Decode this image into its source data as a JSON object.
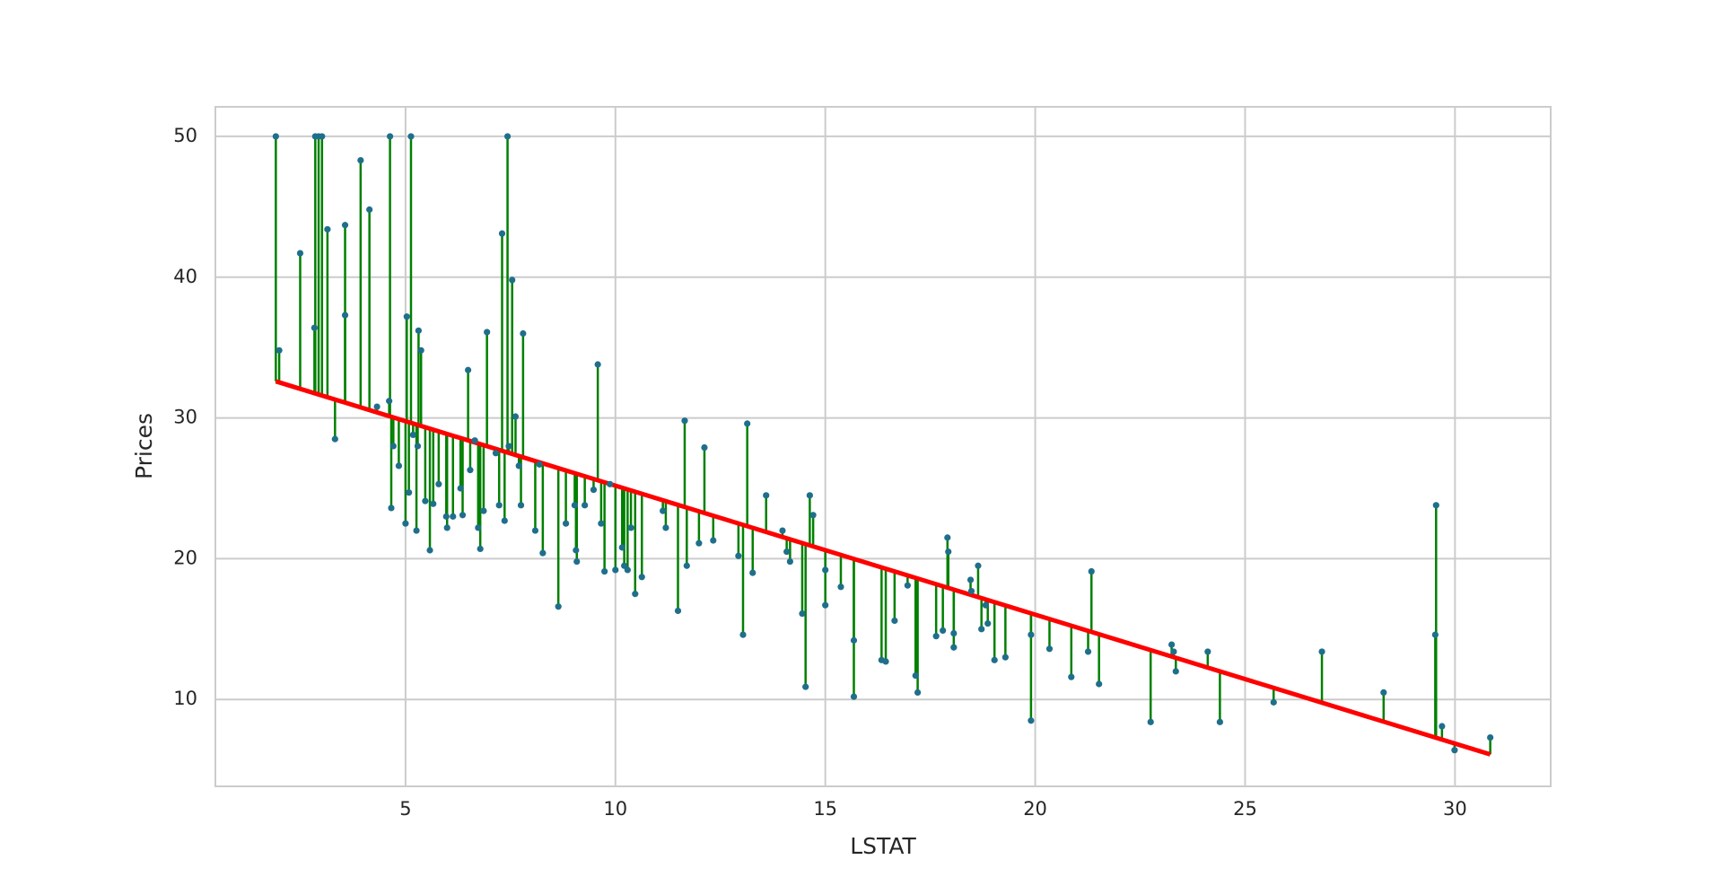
{
  "chart_data": {
    "type": "scatter",
    "x_label": "LSTAT",
    "y_label": "Prices",
    "xlim": [
      0.47,
      32.28
    ],
    "ylim": [
      3.83,
      52.1
    ],
    "xticks": [
      5,
      10,
      15,
      20,
      25,
      30
    ],
    "yticks": [
      10,
      20,
      30,
      40,
      50
    ],
    "grid": true,
    "series": [
      {
        "color": "#1f6f8b",
        "residual_color": "#008000",
        "x": [
          1.91,
          1.99,
          2.49,
          2.85,
          2.93,
          3.01,
          2.83,
          3.14,
          3.32,
          3.56,
          3.56,
          3.93,
          4.14,
          4.32,
          4.63,
          4.61,
          4.66,
          4.71,
          4.84,
          5.0,
          5.03,
          5.08,
          5.13,
          5.18,
          5.29,
          5.31,
          5.26,
          5.37,
          5.47,
          5.58,
          5.66,
          5.79,
          5.97,
          5.99,
          6.13,
          6.31,
          6.36,
          6.49,
          6.54,
          6.65,
          6.73,
          6.78,
          6.86,
          6.94,
          7.15,
          7.23,
          7.3,
          7.36,
          7.43,
          7.46,
          7.54,
          7.62,
          7.7,
          7.75,
          7.8,
          8.09,
          8.19,
          8.27,
          8.64,
          8.82,
          9.03,
          9.06,
          9.08,
          9.27,
          9.48,
          9.58,
          9.66,
          9.74,
          9.87,
          10.0,
          10.16,
          10.21,
          10.29,
          10.37,
          10.47,
          10.63,
          11.13,
          11.2,
          11.49,
          11.65,
          11.7,
          11.99,
          12.12,
          12.33,
          12.93,
          13.04,
          13.14,
          13.27,
          13.59,
          13.98,
          14.08,
          14.16,
          14.45,
          14.53,
          14.63,
          14.71,
          15.0,
          15.0,
          15.37,
          15.68,
          15.68,
          16.34,
          16.44,
          16.65,
          16.96,
          17.15,
          17.2,
          17.64,
          17.8,
          17.91,
          17.93,
          18.06,
          18.06,
          18.46,
          18.48,
          18.64,
          18.72,
          18.82,
          18.87,
          19.03,
          19.29,
          19.9,
          19.9,
          20.34,
          20.86,
          21.26,
          21.34,
          21.52,
          22.75,
          23.25,
          23.3,
          23.35,
          24.11,
          24.4,
          25.68,
          26.83,
          28.3,
          29.53,
          29.55,
          29.69,
          29.99,
          30.84
        ],
        "values": [
          50,
          34.8,
          41.7,
          50,
          50,
          50,
          36.4,
          43.4,
          28.5,
          43.7,
          37.3,
          48.3,
          44.8,
          30.8,
          50,
          31.2,
          23.6,
          28.0,
          26.6,
          22.5,
          37.2,
          24.7,
          50,
          28.8,
          28.0,
          36.2,
          22.0,
          34.8,
          24.1,
          20.6,
          23.9,
          25.3,
          23.0,
          22.2,
          23.0,
          25.0,
          23.1,
          33.4,
          26.3,
          28.4,
          22.2,
          20.7,
          23.4,
          36.1,
          27.5,
          23.8,
          43.1,
          22.7,
          50,
          28.0,
          39.8,
          30.1,
          26.6,
          23.8,
          36.0,
          22.0,
          26.7,
          20.4,
          16.6,
          22.5,
          23.8,
          20.6,
          19.8,
          23.8,
          24.9,
          33.8,
          22.5,
          19.1,
          25.3,
          19.2,
          20.8,
          19.5,
          19.2,
          22.2,
          17.5,
          18.7,
          23.4,
          22.2,
          16.3,
          29.8,
          19.5,
          21.1,
          27.9,
          21.3,
          20.2,
          14.6,
          29.6,
          19.0,
          24.5,
          22.0,
          20.5,
          19.8,
          16.1,
          10.9,
          24.5,
          23.1,
          19.2,
          16.7,
          18.0,
          14.2,
          10.2,
          12.8,
          12.7,
          15.6,
          18.1,
          11.7,
          10.5,
          14.5,
          14.9,
          21.5,
          20.5,
          13.7,
          14.7,
          18.5,
          17.7,
          19.5,
          15.0,
          16.7,
          15.4,
          12.8,
          13.0,
          14.6,
          8.5,
          13.6,
          11.6,
          13.4,
          19.1,
          11.1,
          8.4,
          13.9,
          13.4,
          12.0,
          13.4,
          8.4,
          9.8,
          13.4,
          10.5,
          14.6,
          23.8,
          8.1,
          6.4,
          7.3
        ]
      }
    ],
    "fit": {
      "color": "#ff0000",
      "x": [
        1.91,
        30.84
      ],
      "values": [
        32.6,
        6.1
      ]
    }
  }
}
